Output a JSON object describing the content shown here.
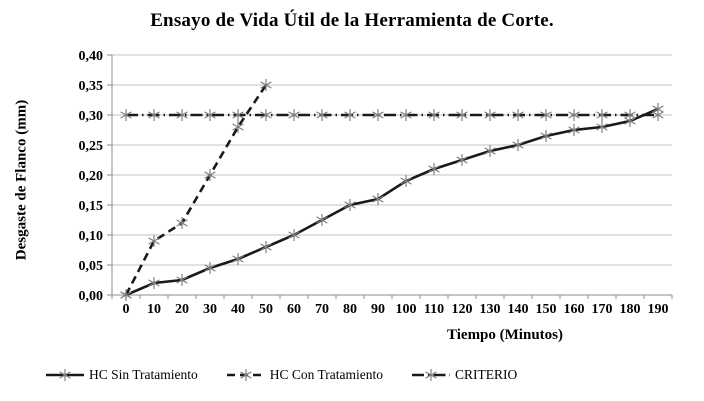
{
  "chart_data": {
    "type": "line",
    "title": "Ensayo de Vida Útil de la Herramienta de Corte.",
    "xlabel": "Tiempo (Minutos)",
    "ylabel": "Desgaste de Flanco (mm)",
    "categories": [
      "0",
      "10",
      "20",
      "30",
      "40",
      "50",
      "60",
      "70",
      "80",
      "90",
      "100",
      "110",
      "120",
      "130",
      "140",
      "150",
      "160",
      "170",
      "180",
      "190"
    ],
    "ylim": [
      0,
      0.4
    ],
    "ytick_interval": 0.05,
    "ytick_labels": [
      "0,00",
      "0,05",
      "0,10",
      "0,15",
      "0,20",
      "0,25",
      "0,30",
      "0,35",
      "0,40"
    ],
    "grid": "horizontal",
    "legend_position": "bottom",
    "decimal_separator": ",",
    "colors": {
      "line": "#1a1a1a",
      "marker": "#7d7d7d",
      "gridline": "#c3c3c3",
      "axis": "#8c8c8c",
      "background": "#ffffff",
      "text": "#000000"
    },
    "series": [
      {
        "name": "HC Sin Tratamiento",
        "line_style": "solid",
        "marker": "asterisk",
        "values": [
          0.0,
          0.02,
          0.025,
          0.045,
          0.06,
          0.08,
          0.1,
          0.125,
          0.15,
          0.16,
          0.19,
          0.21,
          0.225,
          0.24,
          0.25,
          0.265,
          0.275,
          0.28,
          0.29,
          0.31
        ]
      },
      {
        "name": "HC Con Tratamiento",
        "line_style": "dashed",
        "marker": "asterisk",
        "values": [
          0.0,
          0.09,
          0.12,
          0.2,
          0.28,
          0.35,
          null,
          null,
          null,
          null,
          null,
          null,
          null,
          null,
          null,
          null,
          null,
          null,
          null,
          null
        ]
      },
      {
        "name": "CRITERIO",
        "line_style": "dash-dot",
        "marker": "asterisk",
        "values": [
          0.3,
          0.3,
          0.3,
          0.3,
          0.3,
          0.3,
          0.3,
          0.3,
          0.3,
          0.3,
          0.3,
          0.3,
          0.3,
          0.3,
          0.3,
          0.3,
          0.3,
          0.3,
          0.3,
          0.3
        ]
      }
    ]
  }
}
